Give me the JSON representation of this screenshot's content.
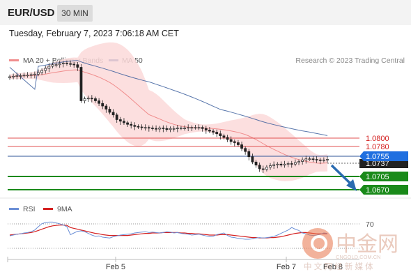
{
  "header": {
    "symbol": "EUR/USD",
    "timeframe": "30 MIN"
  },
  "datetime": "Tuesday, February 7, 2023 7:06:18 AM CET",
  "legend": {
    "ma20_label": "MA 20 + Bollinger Bands",
    "ma50_label": "MA 50",
    "credit": "Research © 2023 Trading Central",
    "rsi_label": "RSI",
    "rsi_ma_label": "9MA"
  },
  "colors": {
    "ma20": "#f08c8c",
    "ma50": "#2f5597",
    "rsi": "#6b8fd6",
    "rsi_ma": "#d42020",
    "resistance": "#e05050",
    "support": "#1a8a1a",
    "pivot": "#2f5597",
    "price_tag": "#1f6fe0",
    "arrow": "#2a6bb0"
  },
  "levels": {
    "resistance": [
      "1.0800",
      "1.0780"
    ],
    "pivot": "1.0755",
    "current": "1.0737",
    "support": [
      "1.0705",
      "1.0670"
    ]
  },
  "rsi": {
    "level_label": "70"
  },
  "xaxis": {
    "labels": [
      "Feb 5",
      "Feb 7",
      "Feb 8"
    ]
  },
  "watermark": {
    "cn": "中金网",
    "sub": "中 文 网 经 新 媒 体",
    "url": "CNGOLD.COM.CN"
  },
  "chart_data": {
    "type": "candlestick",
    "ylim": [
      1.0655,
      1.0935
    ],
    "horizontal_levels": [
      1.08,
      1.078,
      1.0755,
      1.0705,
      1.067
    ],
    "close_series": [
      1.0895,
      1.0896,
      1.0897,
      1.0897,
      1.0898,
      1.0898,
      1.0899,
      1.09,
      1.0903,
      1.0907,
      1.0911,
      1.0915,
      1.0918,
      1.0918,
      1.092,
      1.0921,
      1.092,
      1.0919,
      1.0918,
      1.0913,
      1.0849,
      1.0853,
      1.0854,
      1.0853,
      1.0849,
      1.0844,
      1.0839,
      1.0833,
      1.0827,
      1.0822,
      1.0813,
      1.081,
      1.0807,
      1.0804,
      1.0802,
      1.08,
      1.0799,
      1.0798,
      1.0798,
      1.0797,
      1.0796,
      1.0795,
      1.0797,
      1.0796,
      1.0794,
      1.0796,
      1.0796,
      1.0797,
      1.0797,
      1.0797,
      1.0798,
      1.0798,
      1.0798,
      1.0798,
      1.0796,
      1.0793,
      1.0791,
      1.0789,
      1.0786,
      1.0782,
      1.0779,
      1.0775,
      1.0771,
      1.0769,
      1.0765,
      1.0758,
      1.0752,
      1.0742,
      1.0732,
      1.0726,
      1.0719,
      1.0718,
      1.0722,
      1.0725,
      1.0727,
      1.0728,
      1.0726,
      1.0728,
      1.0729,
      1.0728,
      1.0731,
      1.0733,
      1.0736,
      1.0738,
      1.0738,
      1.0737,
      1.0736,
      1.0735,
      1.0736,
      1.0737
    ],
    "rsi_series": [
      38,
      40,
      42,
      43,
      45,
      46,
      48,
      52,
      60,
      67,
      70,
      71,
      71,
      69,
      67,
      64,
      60,
      41,
      45,
      49,
      50,
      48,
      44,
      40,
      37,
      38,
      35,
      34,
      33,
      36,
      38,
      40,
      41,
      42,
      43,
      45,
      46,
      47,
      48,
      46,
      47,
      46,
      45,
      46,
      48,
      47,
      45,
      46,
      44,
      43,
      42,
      40,
      41,
      42,
      40,
      38,
      36,
      37,
      41,
      43,
      45,
      39,
      35,
      34,
      32,
      31,
      30,
      30,
      31,
      33,
      34,
      33,
      34,
      35,
      37,
      40,
      44,
      48,
      52,
      58,
      54,
      51,
      45,
      43,
      40,
      39,
      40,
      42,
      45,
      44
    ],
    "rsi_ma_series": [
      40,
      41,
      42,
      43,
      44,
      45,
      46,
      48,
      51,
      54,
      57,
      60,
      62,
      63,
      64,
      64,
      63,
      58,
      56,
      54,
      52,
      50,
      48,
      46,
      44,
      43,
      41,
      40,
      39,
      39,
      39,
      39,
      39,
      39,
      40,
      41,
      42,
      43,
      44,
      44,
      45,
      45,
      45,
      46,
      46,
      46,
      46,
      46,
      45,
      45,
      44,
      44,
      43,
      43,
      42,
      41,
      40,
      40,
      40,
      41,
      41,
      41,
      40,
      39,
      38,
      37,
      36,
      35,
      34,
      34,
      33,
      33,
      33,
      34,
      34,
      35,
      36,
      38,
      40,
      42,
      44,
      45,
      46,
      46,
      45,
      44,
      43,
      43,
      43,
      43
    ],
    "rsi_ylim": [
      0,
      100
    ]
  }
}
